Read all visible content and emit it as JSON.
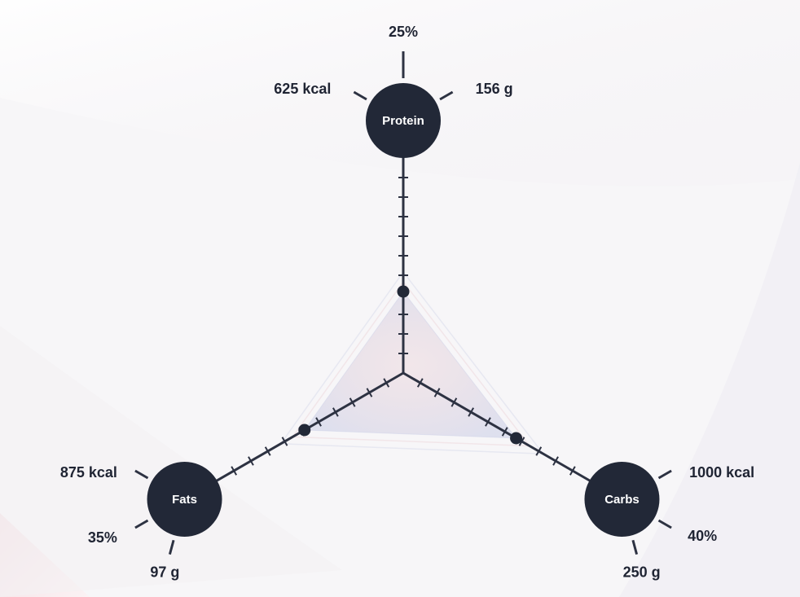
{
  "chart_data": {
    "type": "radar",
    "title": "",
    "axes": [
      {
        "name": "Protein",
        "percent": "25%",
        "kcal": "625 kcal",
        "grams": "156 g",
        "value": 25
      },
      {
        "name": "Carbs",
        "percent": "40%",
        "kcal": "1000 kcal",
        "grams": "250 g",
        "value": 40
      },
      {
        "name": "Fats",
        "percent": "35%",
        "kcal": "875 kcal",
        "grams": "97 g",
        "value": 35
      }
    ],
    "scale_max": 100,
    "tick_count": 10,
    "grid": false,
    "legend": "none"
  },
  "colors": {
    "node": "#222837",
    "axis": "#2d3242",
    "text": "#1f2433",
    "node_text": "#ffffff",
    "background": "#f7f6f8",
    "fill_warm": "#e8c9cf",
    "fill_cool": "#c9cde6"
  }
}
